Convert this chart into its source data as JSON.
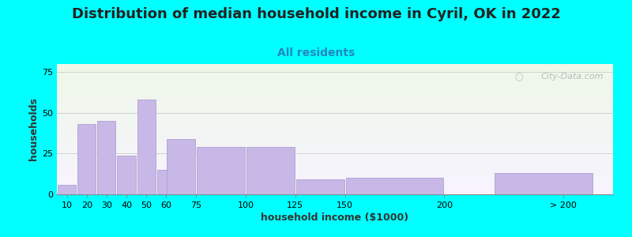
{
  "title": "Distribution of median household income in Cyril, OK in 2022",
  "subtitle": "All residents",
  "xlabel": "household income ($1000)",
  "ylabel": "households",
  "background_color": "#00FFFF",
  "bar_color": "#c8b8e8",
  "bar_edge_color": "#b0a0d0",
  "values": [
    6,
    43,
    45,
    24,
    58,
    15,
    34,
    29,
    29,
    9,
    10,
    13
  ],
  "bar_widths": [
    10,
    10,
    10,
    10,
    10,
    10,
    15,
    25,
    25,
    25,
    50,
    50
  ],
  "bar_lefts": [
    5,
    15,
    25,
    35,
    45,
    55,
    60,
    75,
    100,
    125,
    150,
    225
  ],
  "xtick_positions": [
    10,
    20,
    30,
    40,
    50,
    60,
    75,
    100,
    125,
    150,
    200,
    260
  ],
  "xtick_labels": [
    "10",
    "20",
    "30",
    "40",
    "50",
    "60",
    "75",
    "100",
    "125",
    "150",
    "200",
    "> 200"
  ],
  "ylim": [
    0,
    80
  ],
  "xlim": [
    5,
    285
  ],
  "yticks": [
    0,
    25,
    50,
    75
  ],
  "title_fontsize": 13,
  "subtitle_fontsize": 10,
  "axis_label_fontsize": 9,
  "tick_fontsize": 8,
  "watermark_text": "City-Data.com",
  "plot_bg_top": "#eef8e8",
  "plot_bg_bottom": "#f8f4ff"
}
